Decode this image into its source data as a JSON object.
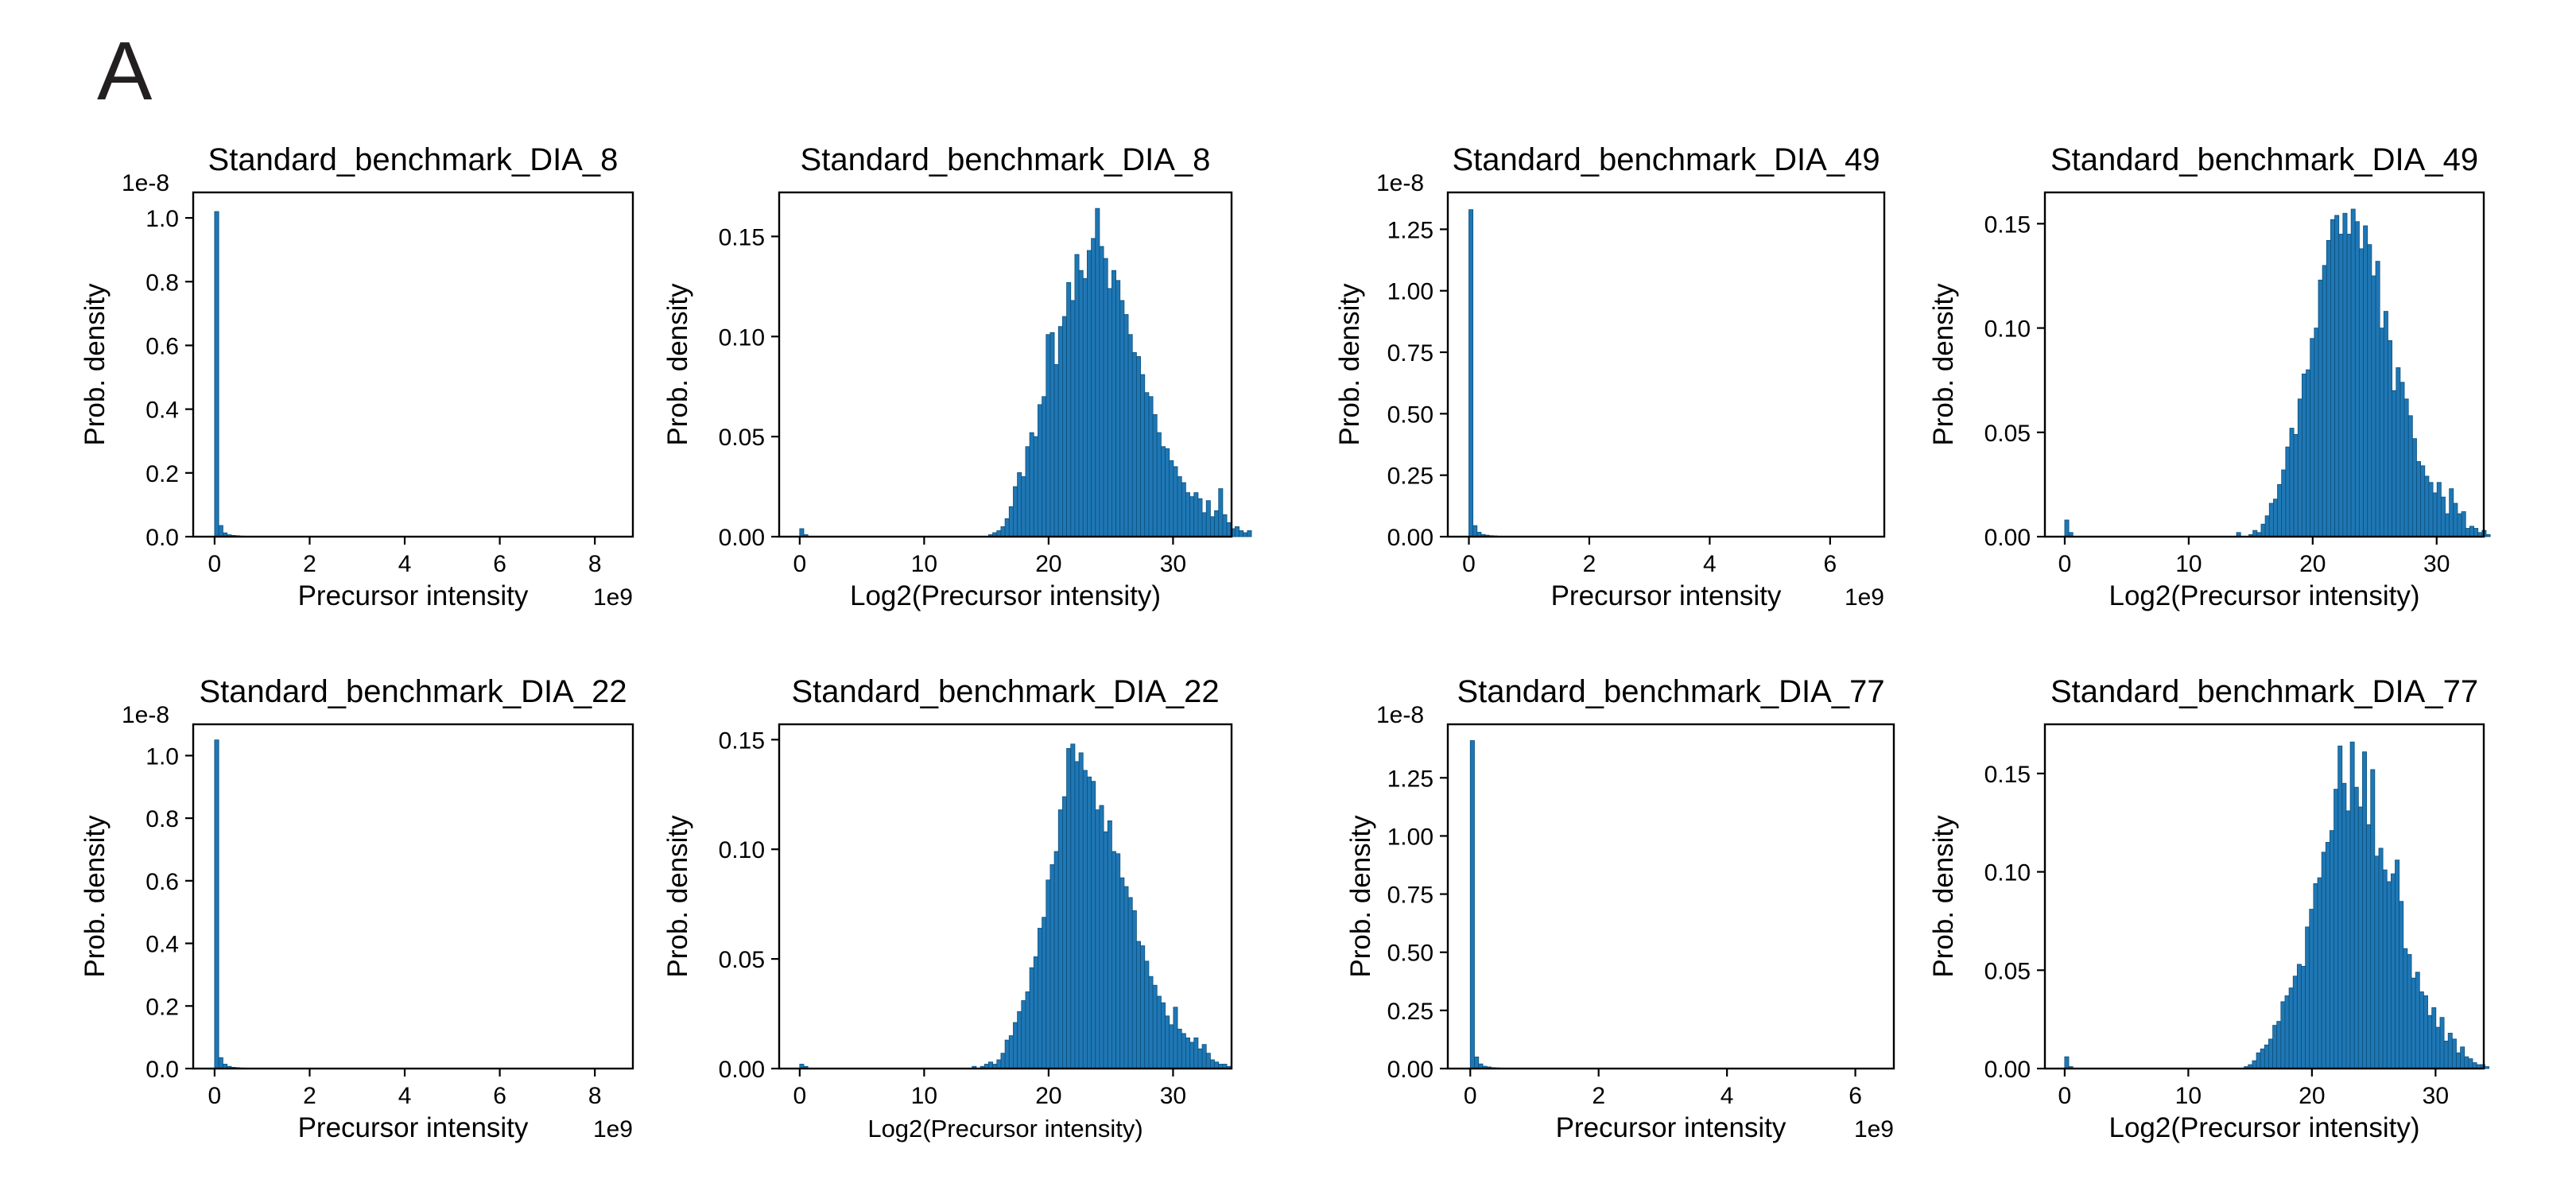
{
  "figure": {
    "panel_label": "A"
  },
  "colors": {
    "bar": "#1f77b4",
    "bar_edge": "#0b4f7c",
    "axis": "#000000"
  },
  "chart_data": [
    {
      "type": "bar",
      "title": "Standard_benchmark_DIA_8",
      "xlabel": "Precursor intensity",
      "ylabel": "Prob. density",
      "x_offset_label": "1e9",
      "y_offset_label": "1e-8",
      "xlim": [
        -0.45,
        8.8
      ],
      "ylim": [
        0,
        1.08
      ],
      "xticks": [
        0,
        2,
        4,
        6,
        8
      ],
      "xtick_labels": [
        "0",
        "2",
        "4",
        "6",
        "8"
      ],
      "yticks": [
        0,
        0.2,
        0.4,
        0.6,
        0.8,
        1.0
      ],
      "ytick_labels": [
        "0.0",
        "0.2",
        "0.4",
        "0.6",
        "0.8",
        "1.0"
      ],
      "bin_start": 0,
      "bin_width": 0.088,
      "values": [
        1.02,
        0.035,
        0.012,
        0.006,
        0.004,
        0.003,
        0.002,
        0.0015,
        0.001,
        0.001
      ]
    },
    {
      "type": "bar",
      "title": "Standard_benchmark_DIA_8",
      "xlabel": "Log2(Precursor intensity)",
      "ylabel": "Prob. density",
      "xlim": [
        -1.65,
        34.7
      ],
      "ylim": [
        0,
        0.172
      ],
      "xticks": [
        0,
        10,
        20,
        30
      ],
      "xtick_labels": [
        "0",
        "10",
        "20",
        "30"
      ],
      "yticks": [
        0,
        0.05,
        0.1,
        0.15
      ],
      "ytick_labels": [
        "0.00",
        "0.05",
        "0.10",
        "0.15"
      ],
      "bin_start": 0,
      "bin_width": 0.33,
      "values": [
        0.004,
        0.001,
        0,
        0,
        0,
        0,
        0,
        0,
        0,
        0,
        0,
        0,
        0,
        0,
        0,
        0,
        0,
        0,
        0,
        0,
        0,
        0,
        0,
        0,
        0,
        0,
        0,
        0,
        0,
        0,
        0,
        0,
        0,
        0,
        0,
        0,
        0,
        0,
        0,
        0,
        0,
        0,
        0,
        0,
        0,
        0,
        0.001,
        0.002,
        0.003,
        0.005,
        0.009,
        0.015,
        0.025,
        0.032,
        0.03,
        0.045,
        0.052,
        0.05,
        0.066,
        0.07,
        0.101,
        0.102,
        0.086,
        0.105,
        0.11,
        0.127,
        0.118,
        0.141,
        0.133,
        0.129,
        0.143,
        0.149,
        0.164,
        0.145,
        0.139,
        0.124,
        0.133,
        0.128,
        0.118,
        0.111,
        0.101,
        0.092,
        0.09,
        0.081,
        0.072,
        0.07,
        0.061,
        0.052,
        0.045,
        0.044,
        0.038,
        0.035,
        0.03,
        0.027,
        0.022,
        0.02,
        0.022,
        0.019,
        0.012,
        0.018,
        0.01,
        0.013,
        0.024,
        0.011,
        0.007,
        0.004,
        0.005,
        0.003,
        0.002,
        0.003
      ]
    },
    {
      "type": "bar",
      "title": "Standard_benchmark_DIA_49",
      "xlabel": "Precursor intensity",
      "ylabel": "Prob. density",
      "x_offset_label": "1e9",
      "y_offset_label": "1e-8",
      "xlim": [
        -0.35,
        6.9
      ],
      "ylim": [
        0,
        1.4
      ],
      "xticks": [
        0,
        2,
        4,
        6
      ],
      "xtick_labels": [
        "0",
        "2",
        "4",
        "6"
      ],
      "yticks": [
        0,
        0.25,
        0.5,
        0.75,
        1.0,
        1.25
      ],
      "ytick_labels": [
        "0.00",
        "0.25",
        "0.50",
        "0.75",
        "1.00",
        "1.25"
      ],
      "bin_start": 0,
      "bin_width": 0.068,
      "values": [
        1.33,
        0.045,
        0.018,
        0.009,
        0.006,
        0.004,
        0.003,
        0.002,
        0.0015,
        0.001
      ]
    },
    {
      "type": "bar",
      "title": "Standard_benchmark_DIA_49",
      "xlabel": "Log2(Precursor intensity)",
      "ylabel": "Prob. density",
      "xlim": [
        -1.6,
        33.8
      ],
      "ylim": [
        0,
        0.165
      ],
      "xticks": [
        0,
        10,
        20,
        30
      ],
      "xtick_labels": [
        "0",
        "10",
        "20",
        "30"
      ],
      "yticks": [
        0,
        0.05,
        0.1,
        0.15
      ],
      "ytick_labels": [
        "0.00",
        "0.05",
        "0.10",
        "0.15"
      ],
      "bin_start": 0,
      "bin_width": 0.33,
      "values": [
        0.008,
        0.002,
        0,
        0,
        0,
        0,
        0,
        0,
        0,
        0,
        0,
        0,
        0,
        0,
        0,
        0,
        0,
        0,
        0,
        0,
        0,
        0,
        0,
        0,
        0,
        0,
        0,
        0,
        0,
        0,
        0,
        0,
        0,
        0,
        0,
        0,
        0,
        0,
        0,
        0,
        0,
        0,
        0.002,
        0,
        0,
        0.001,
        0.003,
        0.002,
        0.006,
        0.01,
        0.016,
        0.018,
        0.025,
        0.032,
        0.043,
        0.052,
        0.049,
        0.066,
        0.078,
        0.08,
        0.095,
        0.1,
        0.123,
        0.13,
        0.142,
        0.152,
        0.154,
        0.145,
        0.155,
        0.145,
        0.157,
        0.151,
        0.138,
        0.149,
        0.14,
        0.125,
        0.132,
        0.1,
        0.108,
        0.094,
        0.07,
        0.081,
        0.074,
        0.066,
        0.058,
        0.047,
        0.036,
        0.034,
        0.029,
        0.026,
        0.021,
        0.026,
        0.019,
        0.011,
        0.023,
        0.016,
        0.011,
        0.012,
        0.004,
        0.005,
        0.004,
        0.002,
        0.003,
        0.001
      ]
    },
    {
      "type": "bar",
      "title": "Standard_benchmark_DIA_22",
      "xlabel": "Precursor intensity",
      "ylabel": "Prob. density",
      "x_offset_label": "1e9",
      "y_offset_label": "1e-8",
      "xlim": [
        -0.45,
        8.8
      ],
      "ylim": [
        0,
        1.1
      ],
      "xticks": [
        0,
        2,
        4,
        6,
        8
      ],
      "xtick_labels": [
        "0",
        "2",
        "4",
        "6",
        "8"
      ],
      "yticks": [
        0,
        0.2,
        0.4,
        0.6,
        0.8,
        1.0
      ],
      "ytick_labels": [
        "0.0",
        "0.2",
        "0.4",
        "0.6",
        "0.8",
        "1.0"
      ],
      "bin_start": 0,
      "bin_width": 0.088,
      "values": [
        1.05,
        0.035,
        0.014,
        0.007,
        0.004,
        0.003,
        0.002,
        0.0015,
        0.001,
        0.001
      ]
    },
    {
      "type": "bar",
      "title": "Standard_benchmark_DIA_22",
      "xlabel": "Log2(Precursor intensity)",
      "ylabel": "Prob. density",
      "xlim": [
        -1.65,
        34.7
      ],
      "ylim": [
        0,
        0.157
      ],
      "xticks": [
        0,
        10,
        20,
        30
      ],
      "xtick_labels": [
        "0",
        "10",
        "20",
        "30"
      ],
      "yticks": [
        0,
        0.05,
        0.1,
        0.15
      ],
      "ytick_labels": [
        "0.00",
        "0.05",
        "0.10",
        "0.15"
      ],
      "bin_start": 0,
      "bin_width": 0.33,
      "values": [
        0.002,
        0.001,
        0,
        0,
        0,
        0,
        0,
        0,
        0,
        0,
        0,
        0,
        0,
        0,
        0,
        0,
        0,
        0,
        0,
        0,
        0,
        0,
        0,
        0,
        0,
        0,
        0,
        0,
        0,
        0,
        0,
        0,
        0,
        0,
        0,
        0,
        0,
        0,
        0,
        0,
        0,
        0,
        0.001,
        0,
        0.001,
        0.002,
        0.003,
        0.002,
        0.004,
        0.007,
        0.013,
        0.015,
        0.021,
        0.026,
        0.031,
        0.035,
        0.046,
        0.051,
        0.064,
        0.069,
        0.086,
        0.093,
        0.099,
        0.118,
        0.124,
        0.146,
        0.148,
        0.14,
        0.144,
        0.136,
        0.133,
        0.131,
        0.118,
        0.12,
        0.108,
        0.113,
        0.099,
        0.098,
        0.087,
        0.083,
        0.078,
        0.072,
        0.058,
        0.056,
        0.049,
        0.042,
        0.038,
        0.033,
        0.03,
        0.024,
        0.02,
        0.028,
        0.018,
        0.016,
        0.014,
        0.012,
        0.014,
        0.009,
        0.011,
        0.007,
        0.004,
        0.003,
        0.002,
        0.002,
        0.001
      ]
    },
    {
      "type": "bar",
      "title": "Standard_benchmark_DIA_77",
      "xlabel": "Precursor intensity",
      "ylabel": "Prob. density",
      "x_offset_label": "1e9",
      "y_offset_label": "1e-8",
      "xlim": [
        -0.35,
        6.6
      ],
      "ylim": [
        0,
        1.48
      ],
      "xticks": [
        0,
        2,
        4,
        6
      ],
      "xtick_labels": [
        "0",
        "2",
        "4",
        "6"
      ],
      "yticks": [
        0,
        0.25,
        0.5,
        0.75,
        1.0,
        1.25
      ],
      "ytick_labels": [
        "0.00",
        "0.25",
        "0.50",
        "0.75",
        "1.00",
        "1.25"
      ],
      "bin_start": 0,
      "bin_width": 0.065,
      "values": [
        1.41,
        0.05,
        0.02,
        0.01,
        0.007,
        0.004,
        0.003,
        0.002,
        0.0015,
        0.001
      ]
    },
    {
      "type": "bar",
      "title": "Standard_benchmark_DIA_77",
      "xlabel": "Log2(Precursor intensity)",
      "ylabel": "Prob. density",
      "xlim": [
        -1.6,
        33.9
      ],
      "ylim": [
        0,
        0.175
      ],
      "xticks": [
        0,
        10,
        20,
        30
      ],
      "xtick_labels": [
        "0",
        "10",
        "20",
        "30"
      ],
      "yticks": [
        0,
        0.05,
        0.1,
        0.15
      ],
      "ytick_labels": [
        "0.00",
        "0.05",
        "0.10",
        "0.15"
      ],
      "bin_start": 0,
      "bin_width": 0.33,
      "values": [
        0.006,
        0.001,
        0,
        0,
        0,
        0,
        0,
        0,
        0,
        0,
        0,
        0,
        0,
        0,
        0,
        0,
        0,
        0,
        0,
        0,
        0,
        0,
        0,
        0,
        0,
        0,
        0,
        0,
        0,
        0,
        0,
        0,
        0,
        0,
        0,
        0,
        0,
        0,
        0,
        0,
        0,
        0,
        0,
        0,
        0.001,
        0.002,
        0.004,
        0.008,
        0.01,
        0.012,
        0.015,
        0.022,
        0.024,
        0.034,
        0.037,
        0.041,
        0.047,
        0.053,
        0.052,
        0.072,
        0.081,
        0.094,
        0.097,
        0.11,
        0.115,
        0.121,
        0.142,
        0.164,
        0.145,
        0.131,
        0.166,
        0.143,
        0.133,
        0.161,
        0.124,
        0.152,
        0.108,
        0.112,
        0.101,
        0.095,
        0.099,
        0.106,
        0.085,
        0.061,
        0.058,
        0.046,
        0.049,
        0.039,
        0.037,
        0.027,
        0.031,
        0.021,
        0.026,
        0.014,
        0.018,
        0.015,
        0.008,
        0.011,
        0.006,
        0.005,
        0.003,
        0.002,
        0.002,
        0.001
      ]
    }
  ]
}
